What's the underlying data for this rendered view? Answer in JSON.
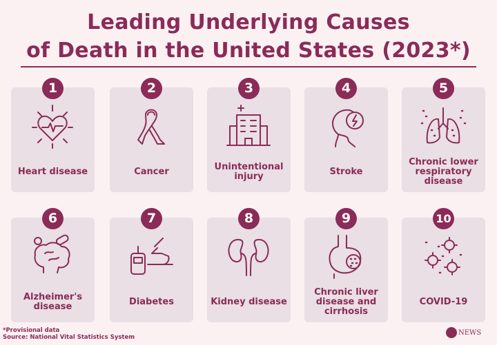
{
  "title": {
    "line1": "Leading Underlying Causes",
    "line2": "of Death in the United States (2023*)"
  },
  "causes": [
    {
      "rank": "1",
      "label": "Heart disease",
      "icon": "heart-icon"
    },
    {
      "rank": "2",
      "label": "Cancer",
      "icon": "ribbon-icon"
    },
    {
      "rank": "3",
      "label": "Unintentional injury",
      "icon": "hospital-icon"
    },
    {
      "rank": "4",
      "label": "Stroke",
      "icon": "head-lightning-icon"
    },
    {
      "rank": "5",
      "label": "Chronic lower respiratory disease",
      "icon": "lungs-icon"
    },
    {
      "rank": "6",
      "label": "Alzheimer's disease",
      "icon": "brain-pills-icon"
    },
    {
      "rank": "7",
      "label": "Diabetes",
      "icon": "glucose-meter-icon"
    },
    {
      "rank": "8",
      "label": "Kidney disease",
      "icon": "kidneys-icon"
    },
    {
      "rank": "9",
      "label": "Chronic liver disease and cirrhosis",
      "icon": "liver-icon"
    },
    {
      "rank": "10",
      "label": "COVID-19",
      "icon": "virus-icon"
    }
  ],
  "footer": {
    "note": "*Provisional data",
    "source": "Source: National Vital Statistics System"
  },
  "logo": {
    "text": "NEWS"
  },
  "colors": {
    "accent": "#8b2b57",
    "card": "#e9dfe4",
    "background": "#fbf1f3"
  }
}
